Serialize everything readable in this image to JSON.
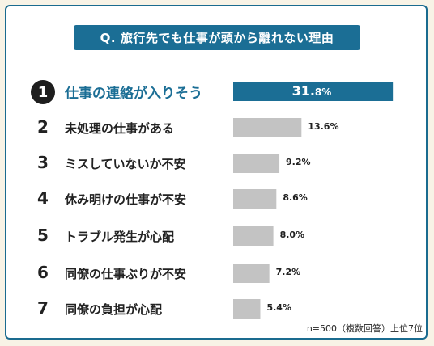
{
  "title": "Q. 旅行先でも仕事が頭から離れない理由",
  "footnote": "n=500（複数回答）上位7位",
  "colors": {
    "accent": "#1b6e95",
    "bar": "#c3c3c3",
    "badge": "#1e1e1e"
  },
  "chart_data": {
    "type": "bar",
    "orientation": "horizontal",
    "categories": [
      "仕事の連絡が入りそう",
      "未処理の仕事がある",
      "ミスしていないか不安",
      "休み明けの仕事が不安",
      "トラブル発生が心配",
      "同僚の仕事ぶりが不安",
      "同僚の負担が心配"
    ],
    "ranks": [
      "1",
      "2",
      "3",
      "4",
      "5",
      "6",
      "7"
    ],
    "values": [
      31.8,
      13.6,
      9.2,
      8.6,
      8.0,
      7.2,
      5.4
    ],
    "value_labels": [
      {
        "main": "31.",
        "suffix": "8%"
      },
      {
        "main": "13.6%",
        "suffix": ""
      },
      {
        "main": "9.2%",
        "suffix": ""
      },
      {
        "main": "8.6%",
        "suffix": ""
      },
      {
        "main": "8.0%",
        "suffix": ""
      },
      {
        "main": "7.2%",
        "suffix": ""
      },
      {
        "main": "5.4%",
        "suffix": ""
      }
    ],
    "unit": "%"
  }
}
